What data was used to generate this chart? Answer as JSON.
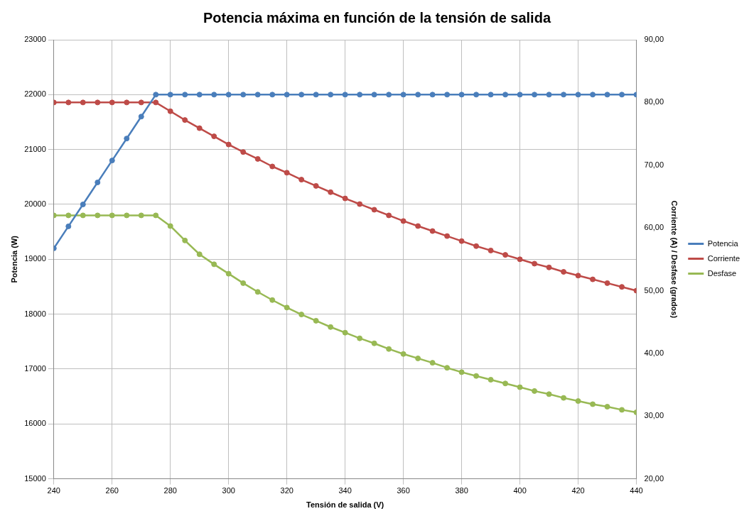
{
  "chart_data": {
    "type": "line",
    "title": "Potencia máxima en función de la tensión de salida",
    "xlabel": "Tensión de salida (V)",
    "ylabel": "Potencia (W)",
    "y2label": "Corriente (A) / Desfase (grados)",
    "x": [
      240,
      245,
      250,
      255,
      260,
      265,
      270,
      275,
      280,
      285,
      290,
      295,
      300,
      305,
      310,
      315,
      320,
      325,
      330,
      335,
      340,
      345,
      350,
      355,
      360,
      365,
      370,
      375,
      380,
      385,
      390,
      395,
      400,
      405,
      410,
      415,
      420,
      425,
      430,
      435,
      440
    ],
    "series": [
      {
        "name": "Potencia",
        "color": "#4a7ebb",
        "values": [
          19200,
          19600,
          20000,
          20400,
          20800,
          21200,
          21600,
          22000,
          22000,
          22000,
          22000,
          22000,
          22000,
          22000,
          22000,
          22000,
          22000,
          22000,
          22000,
          22000,
          22000,
          22000,
          22000,
          22000,
          22000,
          22000,
          22000,
          22000,
          22000,
          22000,
          22000,
          22000,
          22000,
          22000,
          22000,
          22000,
          22000,
          22000,
          22000,
          22000,
          22000
        ]
      },
      {
        "name": "Corriente",
        "color": "#be4b48",
        "axis": "y2",
        "values": [
          80,
          80,
          80,
          80,
          80,
          80,
          80,
          80,
          78.6,
          77.2,
          75.9,
          74.6,
          73.3,
          72.1,
          71.0,
          69.8,
          68.8,
          67.7,
          66.7,
          65.7,
          64.7,
          63.8,
          62.9,
          62.0,
          61.1,
          60.3,
          59.5,
          58.7,
          57.9,
          57.1,
          56.4,
          55.7,
          55.0,
          54.3,
          53.7,
          53.0,
          52.4,
          51.8,
          51.2,
          50.6,
          50.0
        ]
      },
      {
        "name": "Desfase",
        "color": "#98b954",
        "axis": "y2",
        "values": [
          62,
          62,
          62,
          62,
          62,
          62,
          62,
          62,
          60.3,
          58.0,
          55.8,
          54.2,
          52.7,
          51.2,
          49.8,
          48.5,
          47.3,
          46.2,
          45.2,
          44.2,
          43.3,
          42.4,
          41.6,
          40.7,
          39.9,
          39.2,
          38.5,
          37.7,
          37.0,
          36.4,
          35.8,
          35.2,
          34.6,
          34.0,
          33.5,
          32.9,
          32.4,
          31.9,
          31.5,
          31.0,
          30.6
        ]
      }
    ],
    "xlim": [
      240,
      440
    ],
    "xticks": [
      240,
      260,
      280,
      300,
      320,
      340,
      360,
      380,
      400,
      420,
      440
    ],
    "ylim": [
      15000,
      23000
    ],
    "yticks": [
      15000,
      16000,
      17000,
      18000,
      19000,
      20000,
      21000,
      22000,
      23000
    ],
    "y2lim": [
      20,
      90
    ],
    "y2ticks": [
      {
        "value": 20,
        "label": "20,00"
      },
      {
        "value": 30,
        "label": "30,00"
      },
      {
        "value": 40,
        "label": "40,00"
      },
      {
        "value": 50,
        "label": "50,00"
      },
      {
        "value": 60,
        "label": "60,00"
      },
      {
        "value": 70,
        "label": "70,00"
      },
      {
        "value": 80,
        "label": "80,00"
      },
      {
        "value": 90,
        "label": "90,00"
      }
    ],
    "grid": true,
    "legend": "right",
    "marker": "circle",
    "line_style": "solid"
  }
}
